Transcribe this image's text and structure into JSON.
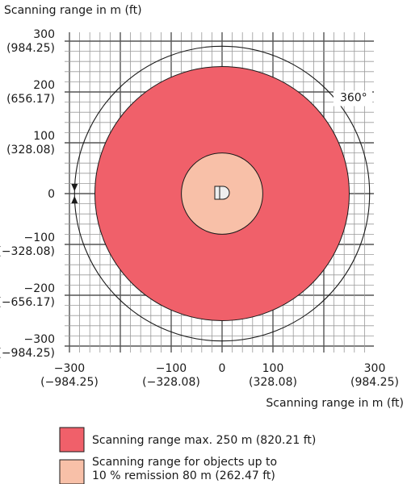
{
  "chart_data": {
    "type": "scanning-range-diagram",
    "title": "",
    "ylabel": "Scanning range in m (ft)",
    "xlabel": "Scanning range in m (ft)",
    "xlim": [
      -350,
      350
    ],
    "ylim": [
      -350,
      350
    ],
    "grid": true,
    "y_ticks": [
      {
        "value": 300,
        "label": "300",
        "sub": "(984.25)"
      },
      {
        "value": 200,
        "label": "200",
        "sub": "(656.17)"
      },
      {
        "value": 100,
        "label": "100",
        "sub": "(328.08)"
      },
      {
        "value": 0,
        "label": "0",
        "sub": ""
      },
      {
        "value": -100,
        "label": "−100",
        "sub": "(−328.08)"
      },
      {
        "value": -200,
        "label": "−200",
        "sub": "(−656.17)"
      },
      {
        "value": -300,
        "label": "−300",
        "sub": "(−984.25)"
      }
    ],
    "x_ticks": [
      {
        "value": -300,
        "label": "−300",
        "sub": "(−984.25)"
      },
      {
        "value": -100,
        "label": "−100",
        "sub": "(−328.08)"
      },
      {
        "value": 0,
        "label": "0",
        "sub": ""
      },
      {
        "value": 100,
        "label": "100",
        "sub": "(328.08)"
      },
      {
        "value": 300,
        "label": "300",
        "sub": "(984.25)"
      }
    ],
    "series": [
      {
        "name": "Scanning range max. 250 m (820.21 ft)",
        "radius": 250,
        "color": "#f0606a"
      },
      {
        "name": "Scanning range for objects up to 10 % remission 80 m (262.47 ft)",
        "radius": 80,
        "color": "#f8c0a8"
      }
    ],
    "rotation_radius": 290,
    "rotation_label": "360°"
  },
  "legend": [
    {
      "line1": "Scanning range max. 250 m (820.21 ft)",
      "line2": "",
      "color": "#f0606a"
    },
    {
      "line1": "Scanning range for objects up to",
      "line2": "10 % remission 80 m (262.47 ft)",
      "color": "#f8c0a8"
    }
  ]
}
